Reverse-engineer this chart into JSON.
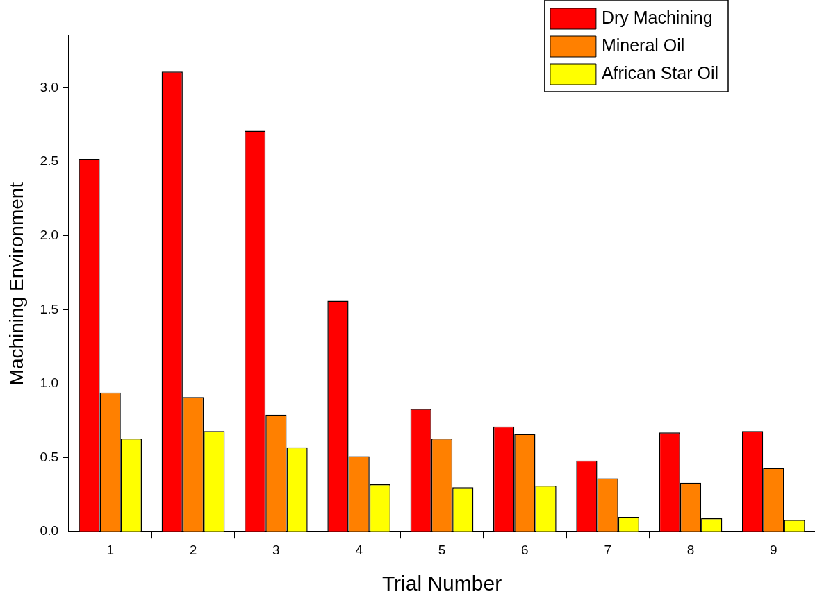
{
  "chart_data": {
    "type": "bar",
    "xlabel": "Trial Number",
    "ylabel": "Machining Environment",
    "categories": [
      "1",
      "2",
      "3",
      "4",
      "5",
      "6",
      "7",
      "8",
      "9"
    ],
    "series": [
      {
        "name": "Dry Machining",
        "color": "#ff0000",
        "values": [
          2.52,
          3.11,
          2.71,
          1.56,
          0.83,
          0.71,
          0.48,
          0.67,
          0.68
        ]
      },
      {
        "name": "Mineral Oil",
        "color": "#ff8000",
        "values": [
          0.94,
          0.91,
          0.79,
          0.51,
          0.63,
          0.66,
          0.36,
          0.33,
          0.43
        ]
      },
      {
        "name": "African Star Oil",
        "color": "#ffff00",
        "values": [
          0.63,
          0.68,
          0.57,
          0.32,
          0.3,
          0.31,
          0.1,
          0.09,
          0.08
        ]
      }
    ],
    "ylim": [
      0,
      3.35
    ],
    "yticks": [
      {
        "value": 0,
        "label": "0.0"
      },
      {
        "value": 0.5,
        "label": "0.5"
      },
      {
        "value": 1,
        "label": "1.0"
      },
      {
        "value": 1.5,
        "label": "1.5"
      },
      {
        "value": 2,
        "label": "2.0"
      },
      {
        "value": 2.5,
        "label": "2.5"
      },
      {
        "value": 3,
        "label": "3.0"
      }
    ],
    "grid": false,
    "legend": "top right"
  }
}
